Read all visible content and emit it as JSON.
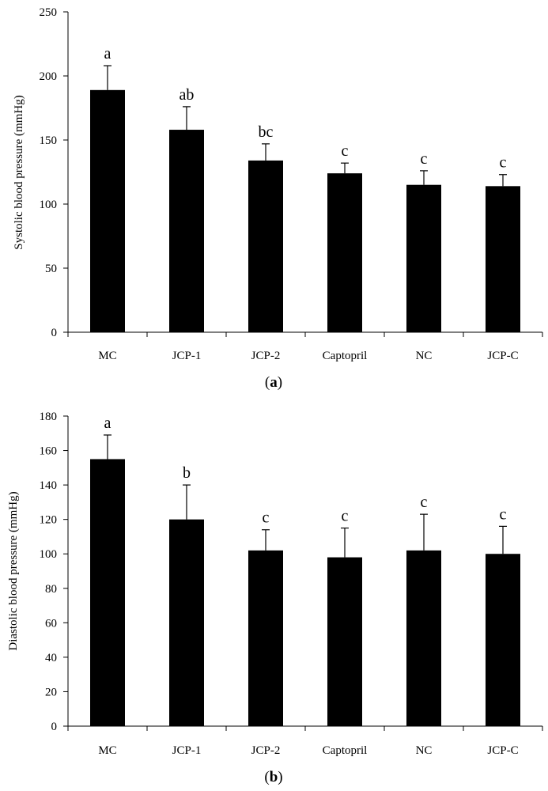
{
  "chart_data": [
    {
      "type": "bar",
      "panel_label": "a",
      "panel_open": "(",
      "panel_close": ")",
      "ylabel": "Systolic blood pressure (mmHg)",
      "xlabel": "",
      "ylim": [
        0,
        250
      ],
      "yticks": [
        0,
        50,
        100,
        150,
        200,
        250
      ],
      "categories": [
        "MC",
        "JCP-1",
        "JCP-2",
        "Captopril",
        "NC",
        "JCP-C"
      ],
      "values": [
        189,
        158,
        134,
        124,
        115,
        114
      ],
      "errors": [
        19,
        18,
        13,
        8,
        11,
        9
      ],
      "significance": [
        "a",
        "ab",
        "bc",
        "c",
        "c",
        "c"
      ],
      "bar_color": "#000000"
    },
    {
      "type": "bar",
      "panel_label": "b",
      "panel_open": "(",
      "panel_close": ")",
      "ylabel": "Diastolic blood pressure (mmHg)",
      "xlabel": "",
      "ylim": [
        0,
        180
      ],
      "yticks": [
        0,
        20,
        40,
        60,
        80,
        100,
        120,
        140,
        160,
        180
      ],
      "categories": [
        "MC",
        "JCP-1",
        "JCP-2",
        "Captopril",
        "NC",
        "JCP-C"
      ],
      "values": [
        155,
        120,
        102,
        98,
        102,
        100
      ],
      "errors": [
        14,
        20,
        12,
        17,
        21,
        16
      ],
      "significance": [
        "a",
        "b",
        "c",
        "c",
        "c",
        "c"
      ],
      "bar_color": "#000000"
    }
  ]
}
